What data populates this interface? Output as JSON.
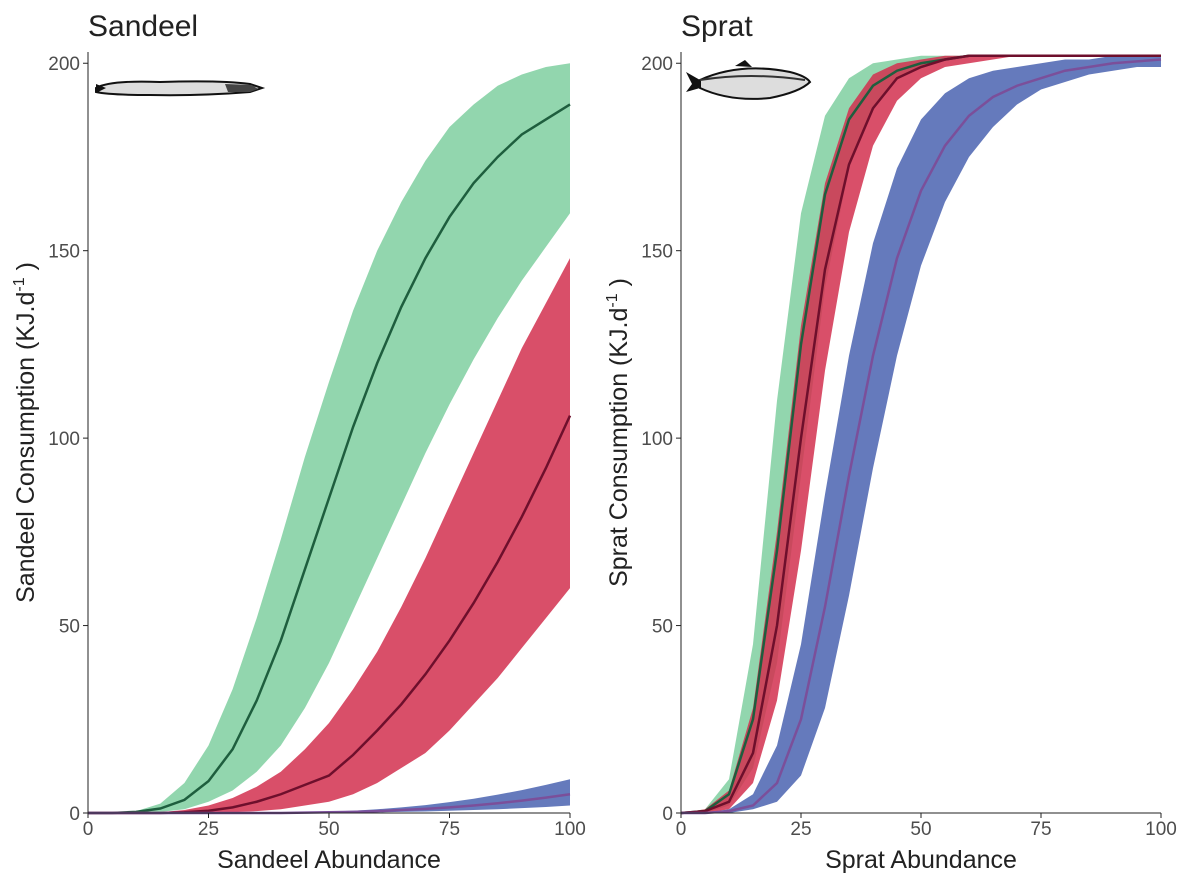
{
  "chart_data": [
    {
      "type": "line-band",
      "title": "Sandeel",
      "x_label": "Sandeel Abundance",
      "y_label": {
        "text": "Sandeel Consumption (KJ.d",
        "superscript": "-1",
        "suffix": " )"
      },
      "x": [
        0,
        5,
        10,
        15,
        20,
        25,
        30,
        35,
        40,
        45,
        50,
        55,
        60,
        65,
        70,
        75,
        80,
        85,
        90,
        95,
        100
      ],
      "xlim": [
        0,
        100
      ],
      "xticks": [
        0,
        25,
        50,
        75,
        100
      ],
      "ylim": [
        0,
        203
      ],
      "yticks": [
        0,
        50,
        100,
        150,
        200
      ],
      "series": [
        {
          "color": "#7fcfa0",
          "line_color": "#1e5e3e",
          "values": [
            0,
            0,
            0.3,
            1.2,
            3.5,
            8.5,
            17,
            30,
            46,
            65,
            84,
            103,
            120,
            135,
            148,
            159,
            168,
            175,
            181,
            185,
            189
          ],
          "lower": [
            0,
            0,
            0,
            0.3,
            1,
            3,
            6,
            11,
            18,
            28,
            40,
            54,
            68,
            82,
            96,
            109,
            121,
            132,
            142,
            151,
            160
          ],
          "upper": [
            0,
            0,
            0.5,
            2.5,
            8,
            18,
            33,
            52,
            73,
            95,
            115,
            134,
            150,
            163,
            174,
            183,
            189,
            194,
            197,
            199,
            200
          ]
        },
        {
          "color": "#d2304f",
          "line_color": "#6e0f2c",
          "values": [
            0,
            0,
            0,
            0,
            0.2,
            0.6,
            1.5,
            3,
            5,
            7.5,
            10,
            15.5,
            22,
            29,
            37,
            46,
            56,
            67,
            79,
            92,
            106
          ],
          "lower": [
            0,
            0,
            0,
            0,
            0,
            0,
            0.2,
            0.5,
            1,
            2,
            3,
            5,
            8,
            12,
            16,
            22,
            29,
            36,
            44,
            52,
            60
          ],
          "upper": [
            0,
            0,
            0,
            0.2,
            0.8,
            2,
            4,
            7,
            11,
            17,
            24,
            33,
            43,
            55,
            68,
            82,
            96,
            110,
            124,
            136,
            148
          ]
        },
        {
          "color": "#4a63b0",
          "line_color": "#7b4f9a",
          "values": [
            0,
            0,
            0,
            0,
            0,
            0,
            0,
            0,
            0,
            0.1,
            0.2,
            0.3,
            0.5,
            0.8,
            1.1,
            1.5,
            2,
            2.6,
            3.3,
            4.1,
            5
          ],
          "lower": [
            0,
            0,
            0,
            0,
            0,
            0,
            0,
            0,
            0,
            0,
            0,
            0.1,
            0.2,
            0.3,
            0.4,
            0.6,
            0.8,
            1,
            1.3,
            1.6,
            2
          ],
          "upper": [
            0,
            0,
            0,
            0,
            0,
            0,
            0,
            0,
            0.1,
            0.2,
            0.4,
            0.6,
            1,
            1.5,
            2.1,
            2.9,
            3.8,
            4.9,
            6.1,
            7.5,
            9
          ]
        }
      ]
    },
    {
      "type": "line-band",
      "title": "Sprat",
      "x_label": "Sprat Abundance",
      "y_label": {
        "text": "Sprat Consumption (KJ.d",
        "superscript": "-1",
        "suffix": " )"
      },
      "x": [
        0,
        5,
        10,
        15,
        20,
        25,
        30,
        35,
        40,
        45,
        50,
        55,
        60,
        65,
        70,
        75,
        80,
        85,
        90,
        95,
        100
      ],
      "xlim": [
        0,
        100
      ],
      "xticks": [
        0,
        25,
        50,
        75,
        100
      ],
      "ylim": [
        0,
        203
      ],
      "yticks": [
        0,
        50,
        100,
        150,
        200
      ],
      "series": [
        {
          "color": "#7fcfa0",
          "line_color": "#1e5e3e",
          "values": [
            0,
            0.5,
            5,
            25,
            70,
            125,
            165,
            185,
            194,
            198,
            200,
            201,
            202,
            202,
            202,
            202,
            202,
            202,
            202,
            202,
            202
          ],
          "lower": [
            0,
            0,
            2,
            12,
            40,
            90,
            140,
            172,
            188,
            196,
            199,
            201,
            202,
            202,
            202,
            202,
            202,
            202,
            202,
            202,
            202
          ],
          "upper": [
            0,
            1,
            9,
            45,
            110,
            160,
            186,
            196,
            200,
            201,
            202,
            202,
            202,
            202,
            202,
            202,
            202,
            202,
            202,
            202,
            202
          ]
        },
        {
          "color": "#d2304f",
          "line_color": "#6e0f2c",
          "values": [
            0,
            0.5,
            3,
            16,
            50,
            100,
            145,
            173,
            188,
            196,
            199,
            201,
            202,
            202,
            202,
            202,
            202,
            202,
            202,
            202,
            202
          ],
          "lower": [
            0,
            0,
            1,
            8,
            30,
            70,
            118,
            155,
            178,
            190,
            196,
            199,
            200,
            201,
            202,
            202,
            202,
            202,
            202,
            202,
            202
          ],
          "upper": [
            0,
            1,
            6,
            28,
            75,
            130,
            168,
            188,
            197,
            200,
            201,
            202,
            202,
            202,
            202,
            202,
            202,
            202,
            202,
            202,
            202
          ]
        },
        {
          "color": "#4a63b0",
          "line_color": "#7b4f9a",
          "values": [
            0,
            0,
            0.5,
            2,
            8,
            25,
            55,
            90,
            122,
            148,
            166,
            178,
            186,
            191,
            194,
            196,
            198,
            199,
            200,
            200.5,
            201
          ],
          "lower": [
            0,
            0,
            0,
            1,
            3,
            10,
            28,
            58,
            92,
            122,
            146,
            163,
            175,
            183,
            189,
            193,
            195,
            197,
            198,
            199,
            199
          ],
          "upper": [
            0,
            0,
            1,
            5,
            18,
            45,
            85,
            122,
            152,
            172,
            185,
            192,
            196,
            198,
            199,
            200,
            201,
            201,
            202,
            202,
            202
          ]
        }
      ]
    }
  ]
}
